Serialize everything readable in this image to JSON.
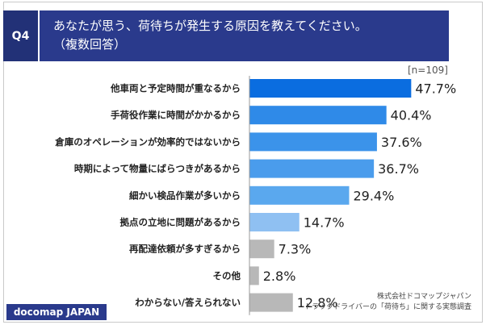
{
  "header": {
    "question_number": "Q4",
    "title": "あなたが思う、荷待ちが発生する原因を教えてください。",
    "subtitle": "（複数回答）"
  },
  "sample_size": "[n=109]",
  "chart_data": {
    "type": "bar",
    "orientation": "horizontal",
    "categories": [
      "他車両と予定時間が重なるから",
      "手荷役作業に時間がかかるから",
      "倉庫のオペレーションが効率的ではないから",
      "時期によって物量にばらつきがあるから",
      "細かい検品作業が多いから",
      "拠点の立地に問題があるから",
      "再配達依頼が多すぎるから",
      "その他",
      "わからない/答えられない"
    ],
    "values": [
      47.7,
      40.4,
      37.6,
      36.7,
      29.4,
      14.7,
      7.3,
      2.8,
      12.8
    ],
    "value_labels": [
      "47.7%",
      "40.4%",
      "37.6%",
      "36.7%",
      "29.4%",
      "14.7%",
      "7.3%",
      "2.8%",
      "12.8%"
    ],
    "colors": [
      "#0a6de0",
      "#2f8ae8",
      "#3b93ea",
      "#4a9cec",
      "#5aa8ee",
      "#8fc0f2",
      "#b8b8b8",
      "#b8b8b8",
      "#b8b8b8"
    ],
    "xlim": [
      0,
      50
    ],
    "grid": false,
    "legend": "none"
  },
  "footer": {
    "brand": "docomap JAPAN",
    "source_line1": "株式会社ドコマップジャパン",
    "source_line2": "トラックドライバーの「荷待ち」に関する実態調査"
  }
}
